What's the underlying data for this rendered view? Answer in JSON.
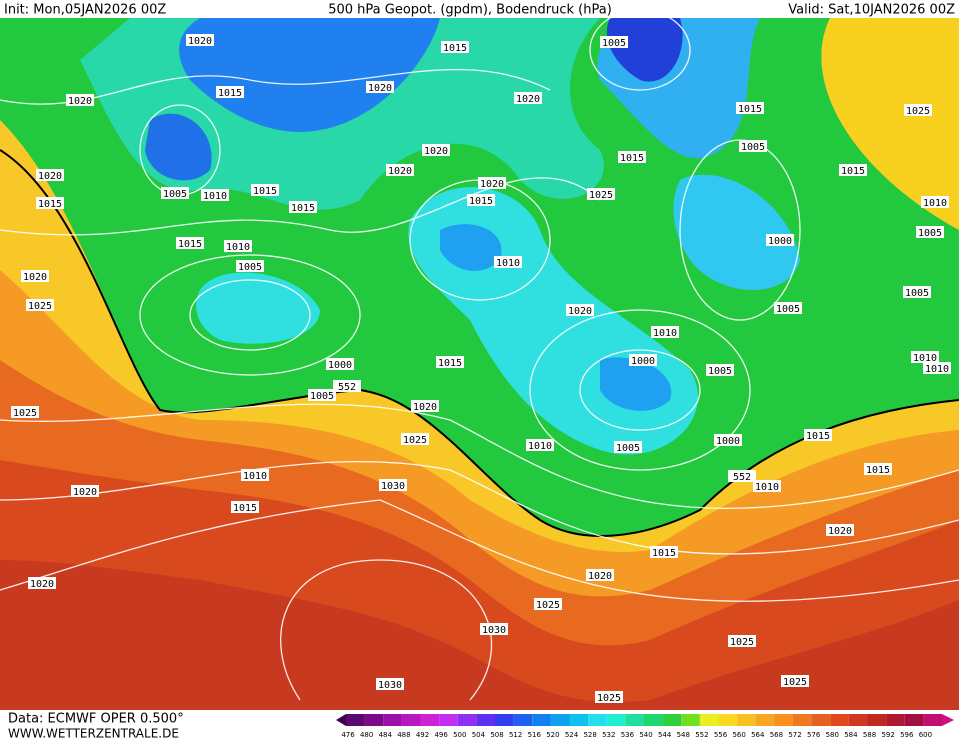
{
  "header": {
    "init": "Init: Mon,05JAN2026 00Z",
    "title": "500 hPa Geopot. (gpdm), Bodendruck (hPa)",
    "valid": "Valid: Sat,10JAN2026 00Z"
  },
  "footer": {
    "data": "Data: ECMWF OPER 0.500°",
    "site": "WWW.WETTERZENTRALE.DE"
  },
  "colorbar": {
    "values": [
      476,
      480,
      484,
      488,
      492,
      496,
      500,
      504,
      508,
      512,
      516,
      520,
      524,
      528,
      532,
      536,
      540,
      544,
      548,
      552,
      556,
      560,
      564,
      568,
      572,
      576,
      580,
      584,
      588,
      592,
      596,
      600
    ],
    "colors": [
      "#5a0a6e",
      "#7a0a8a",
      "#9a10a8",
      "#b818c0",
      "#d020d8",
      "#c030f0",
      "#9030f0",
      "#6030f0",
      "#3040f0",
      "#2060f0",
      "#1080f0",
      "#10a0f0",
      "#10c0f0",
      "#20e0f0",
      "#20f0d0",
      "#20e0a0",
      "#20d870",
      "#30d040",
      "#70e020",
      "#e8f020",
      "#f8d820",
      "#f8c020",
      "#f8a820",
      "#f89020",
      "#f07820",
      "#e86020",
      "#e04820",
      "#d03820",
      "#c02820",
      "#b01830",
      "#a01040",
      "#c01070"
    ]
  },
  "isobar_labels": [
    1020,
    1020,
    1015,
    1020,
    1015,
    1005,
    1010,
    1015,
    1015,
    1015,
    1010,
    1005,
    1020,
    1025,
    1000,
    1005,
    1025,
    1020,
    1025,
    1015,
    1010,
    1005,
    1000,
    1005,
    1000,
    1010,
    1020,
    1010,
    1015,
    1020,
    1025,
    1015,
    1020,
    1020,
    1015,
    1005,
    1015,
    1005,
    1000,
    1005,
    1015,
    1010,
    1005,
    1005,
    1010,
    1010,
    1025,
    1015,
    1015,
    1010,
    1020,
    1015,
    1020,
    1025,
    1030,
    1030,
    1010,
    1015,
    1020,
    1020,
    1030,
    1025,
    1025,
    1025,
    1020,
    1020,
    552,
    552
  ]
}
